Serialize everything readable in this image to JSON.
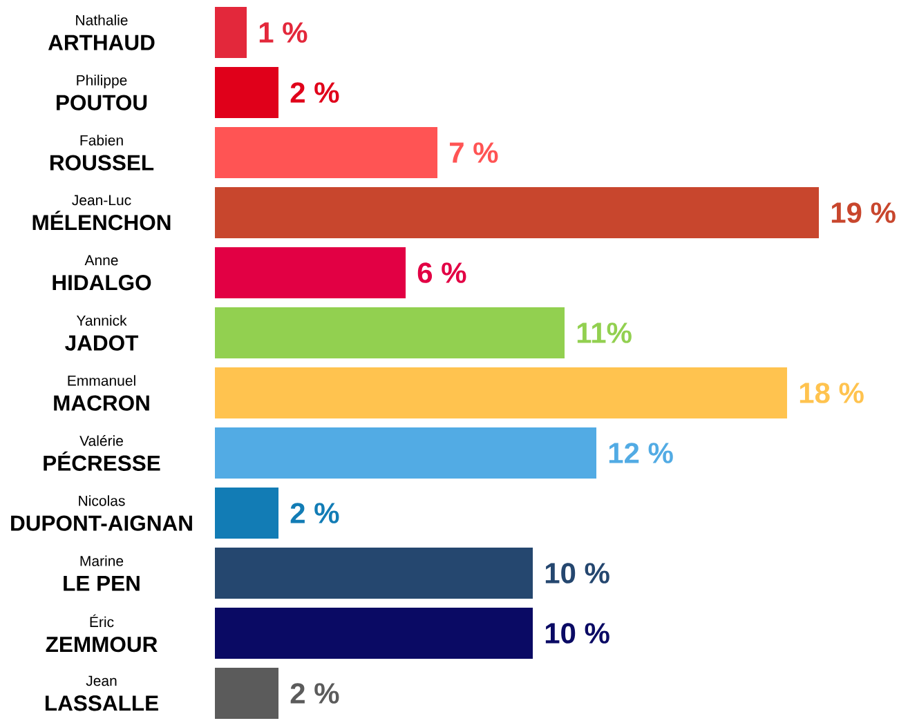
{
  "chart_data": {
    "type": "bar",
    "orientation": "horizontal",
    "categories": [
      "Nathalie **ARTHAUD**",
      "Philippe **POUTOU**",
      "Fabien **ROUSSEL**",
      "Jean-Luc **MÉLENCHON**",
      "Anne **HIDALGO**",
      "Yannick **JADOT**",
      "Emmanuel **MACRON**",
      "Valérie **PÉCRESSE**",
      "Nicolas **DUPONT-AIGNAN**",
      "Marine **LE PEN**",
      "Éric **ZEMMOUR**",
      "Jean **LASSALLE**"
    ],
    "values": [
      1,
      2,
      7,
      19,
      6,
      11,
      18,
      12,
      2,
      10,
      10,
      2
    ],
    "colors": [
      "#e3283b",
      "#e0001a",
      "#ff5454",
      "#c8462d",
      "#e20044",
      "#92d050",
      "#ffc34f",
      "#52abe4",
      "#127cb5",
      "#25476f",
      "#0a0a64",
      "#5b5b5b"
    ],
    "value_labels": [
      "1 %",
      "2 %",
      "7 %",
      "19 %",
      "6 %",
      "11%",
      "18 %",
      "12 %",
      "2 %",
      "10 %",
      "10 %",
      "2 %"
    ],
    "tick_labels": "y"
  }
}
